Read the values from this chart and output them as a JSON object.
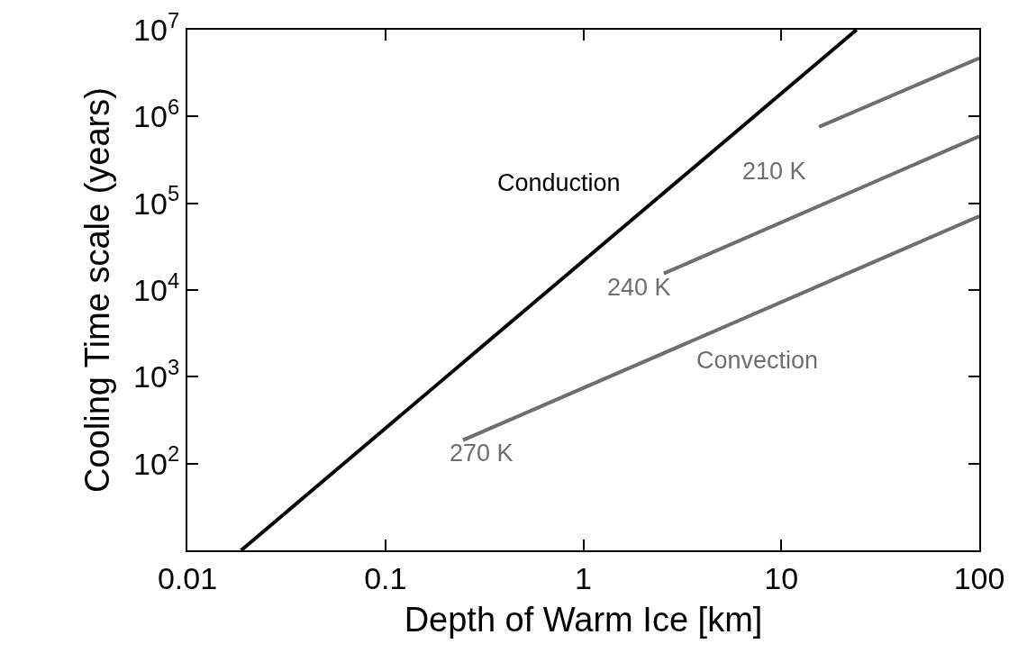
{
  "chart_data": {
    "type": "line",
    "xlabel": "Depth of Warm Ice [km]",
    "ylabel": "Cooling Time scale (years)",
    "log": "xy",
    "xlim": [
      0.01,
      100
    ],
    "xticks": [
      0.01,
      0.1,
      1,
      10,
      100
    ],
    "ylim": [
      10,
      10000000
    ],
    "yticks": [
      {
        "value": 100,
        "label": "10$^{2}$"
      },
      {
        "value": 1000,
        "label": "10$^{3}$"
      },
      {
        "value": 10000,
        "label": "10$^{4}$"
      },
      {
        "value": 100000,
        "label": "10$^{5}$"
      },
      {
        "value": 1000000,
        "label": "10$^{6}$"
      },
      {
        "value": 10000000,
        "label": "10$^{7}$"
      }
    ],
    "marker": "none",
    "line_style": "solid",
    "series": [
      {
        "color": "#000000",
        "x": [
          0.0187,
          24
        ],
        "values": [
          10,
          10000000
        ]
      },
      {
        "color": "#6e6e6e",
        "x": [
          0.247,
          100
        ],
        "values": [
          186,
          71000
        ]
      },
      {
        "color": "#6e6e6e",
        "x": [
          2.55,
          100
        ],
        "values": [
          15500,
          590000
        ]
      },
      {
        "color": "#6e6e6e",
        "x": [
          15.5,
          100
        ],
        "values": [
          760000,
          4700000
        ]
      }
    ],
    "annotations": [
      "Conduction",
      "210 K",
      "240 K",
      "Convection",
      "270 K"
    ]
  }
}
